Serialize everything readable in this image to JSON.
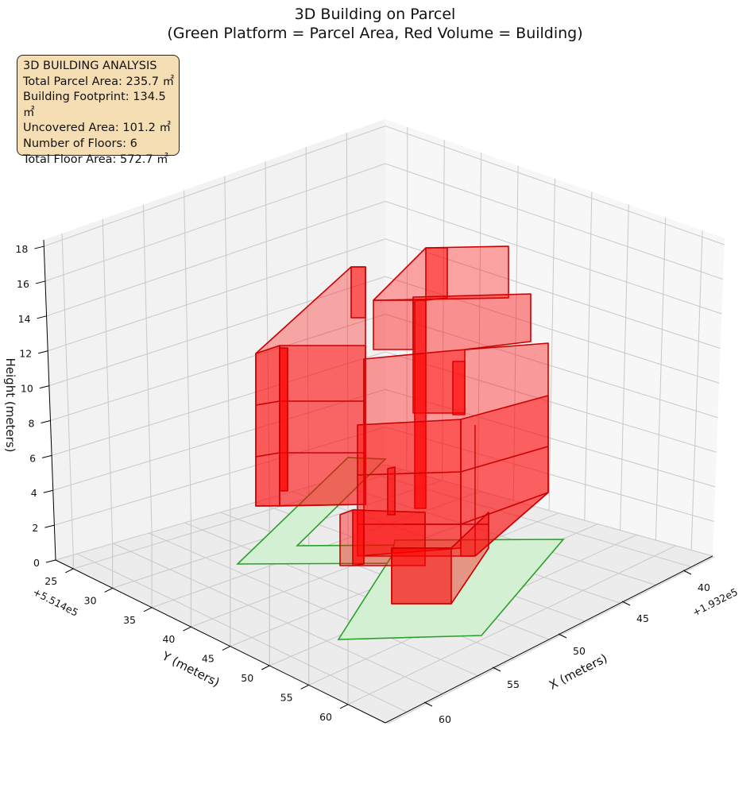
{
  "chart_data": {
    "type": "3d-polygons",
    "title": "3D Building on Parcel",
    "subtitle": "(Green Platform = Parcel Area, Red Volume = Building)",
    "xlabel": "X (meters)",
    "ylabel": "Y (meters)",
    "zlabel": "Height (meters)",
    "x_offset_label": "+1.932e5",
    "y_offset_label": "+5.514e5",
    "x_ticks": [
      "40",
      "45",
      "50",
      "55",
      "60"
    ],
    "y_ticks": [
      "25",
      "30",
      "35",
      "40",
      "45",
      "50",
      "55",
      "60"
    ],
    "z_ticks": [
      "0",
      "2",
      "4",
      "6",
      "8",
      "10",
      "12",
      "14",
      "16",
      "18"
    ],
    "grid": true,
    "colors": {
      "parcel_fill": "#d3f0d3",
      "parcel_edge": "#2ca02c",
      "building_fill": "#ff0000",
      "building_edge": "#cc0000"
    },
    "floors": 6,
    "floor_height_m": 3
  },
  "info": {
    "line1": "3D BUILDING ANALYSIS",
    "line2": "Total Parcel Area: 235.7 ㎡",
    "line3": "Building Footprint: 134.5 ㎡",
    "line4": "Uncovered Area: 101.2 ㎡",
    "line5": "Number of Floors: 6",
    "line6": "Total Floor Area: 572.7 ㎡"
  }
}
